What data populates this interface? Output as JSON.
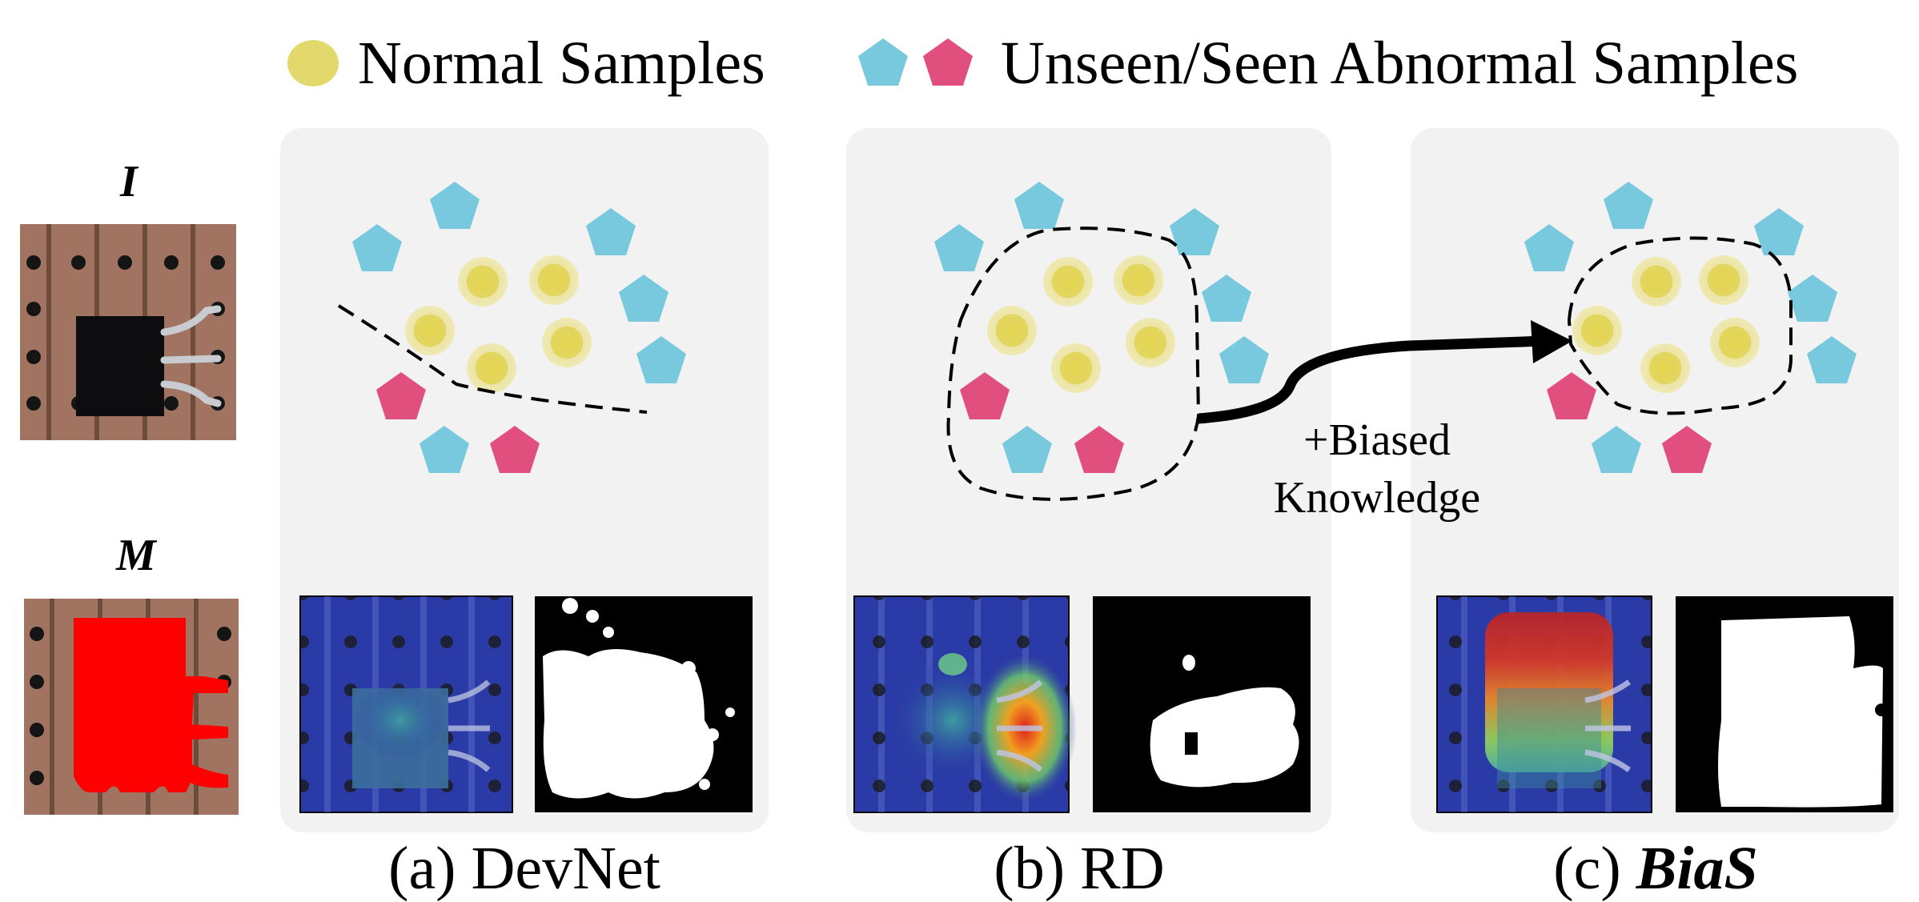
{
  "legend": {
    "normal_label": "Normal Samples",
    "abnormal_label": "Unseen/Seen Abnormal Samples"
  },
  "inputs": {
    "image_label": "I",
    "mask_label": "M"
  },
  "panels": [
    {
      "prefix": "(a) ",
      "name": "DevNet",
      "bold_italic": false
    },
    {
      "prefix": "(b) ",
      "name": "RD",
      "bold_italic": false
    },
    {
      "prefix": "(c) ",
      "name": "BiaS",
      "bold_italic": true
    }
  ],
  "arrow_label": {
    "line1": "+Biased",
    "line2": "Knowledge"
  },
  "colors": {
    "normal": "#e3d86b",
    "unseen_abnormal": "#78c8de",
    "seen_abnormal": "#e04f7e",
    "panel_bg": "#f2f2f2",
    "mask_red": "#ff0000",
    "heatmap_base": "#2a3aa6",
    "board": "#a07460"
  }
}
